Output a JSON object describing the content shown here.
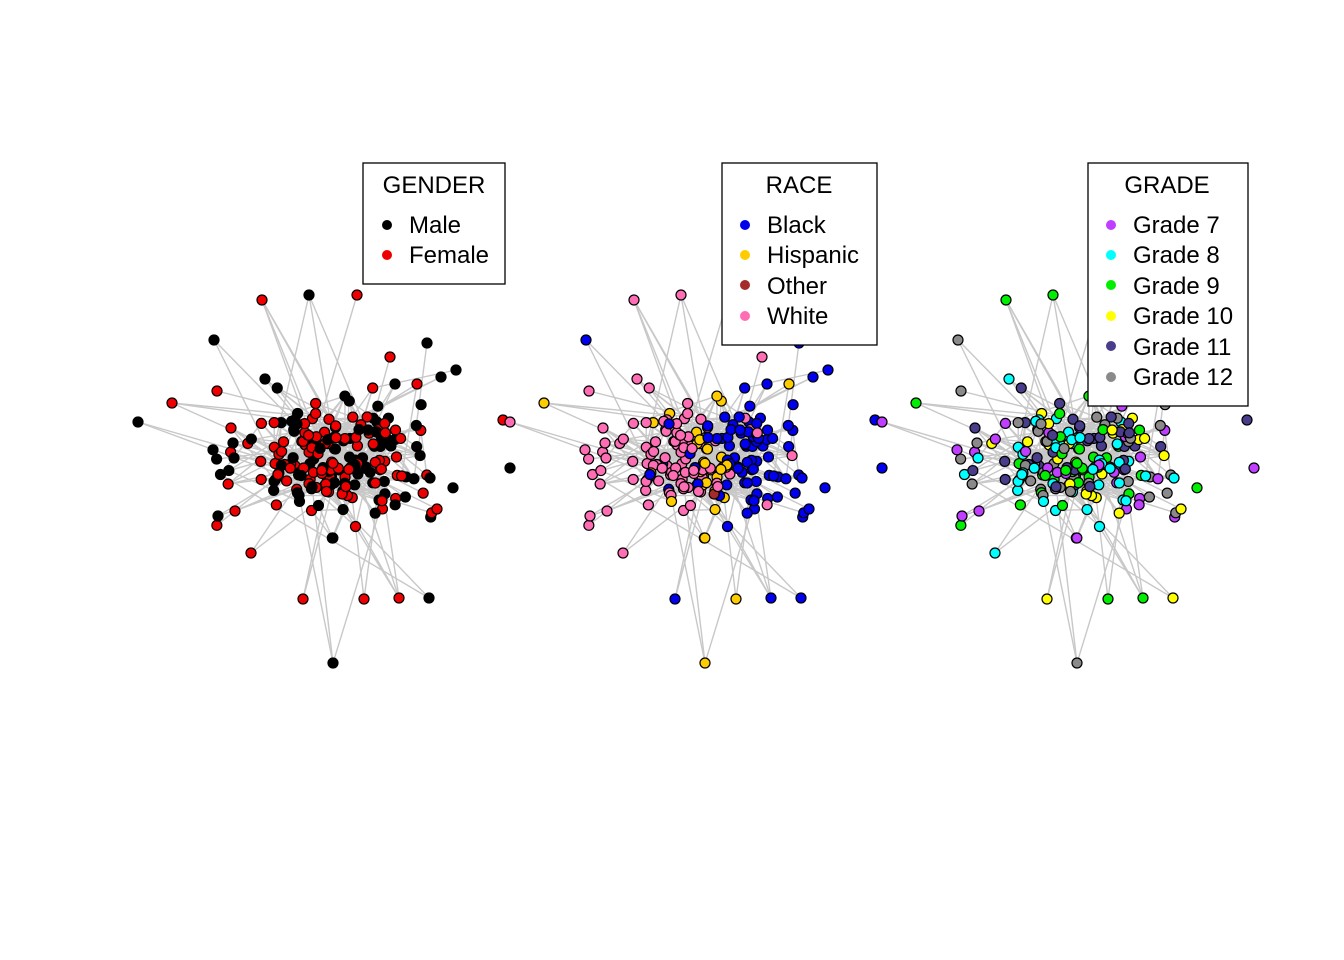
{
  "colors": {
    "edge": "#c8c8c8",
    "node_stroke": "#000000"
  },
  "panels": [
    {
      "id": "gender",
      "legend": {
        "title": "GENDER",
        "items": [
          {
            "label": "Male",
            "color": "#000000"
          },
          {
            "label": "Female",
            "color": "#ee0000"
          }
        ]
      }
    },
    {
      "id": "race",
      "legend": {
        "title": "RACE",
        "items": [
          {
            "label": "Black",
            "color": "#0000ee"
          },
          {
            "label": "Hispanic",
            "color": "#ffcc00"
          },
          {
            "label": "Other",
            "color": "#a52a2a"
          },
          {
            "label": "White",
            "color": "#ff6eb4"
          }
        ]
      }
    },
    {
      "id": "grade",
      "legend": {
        "title": "GRADE",
        "items": [
          {
            "label": "Grade 7",
            "color": "#bf3eff"
          },
          {
            "label": "Grade 8",
            "color": "#00ffff"
          },
          {
            "label": "Grade 9",
            "color": "#00ee00"
          },
          {
            "label": "Grade 10",
            "color": "#ffff00"
          },
          {
            "label": "Grade 11",
            "color": "#483d8b"
          },
          {
            "label": "Grade 12",
            "color": "#8b8989"
          }
        ]
      }
    }
  ]
}
